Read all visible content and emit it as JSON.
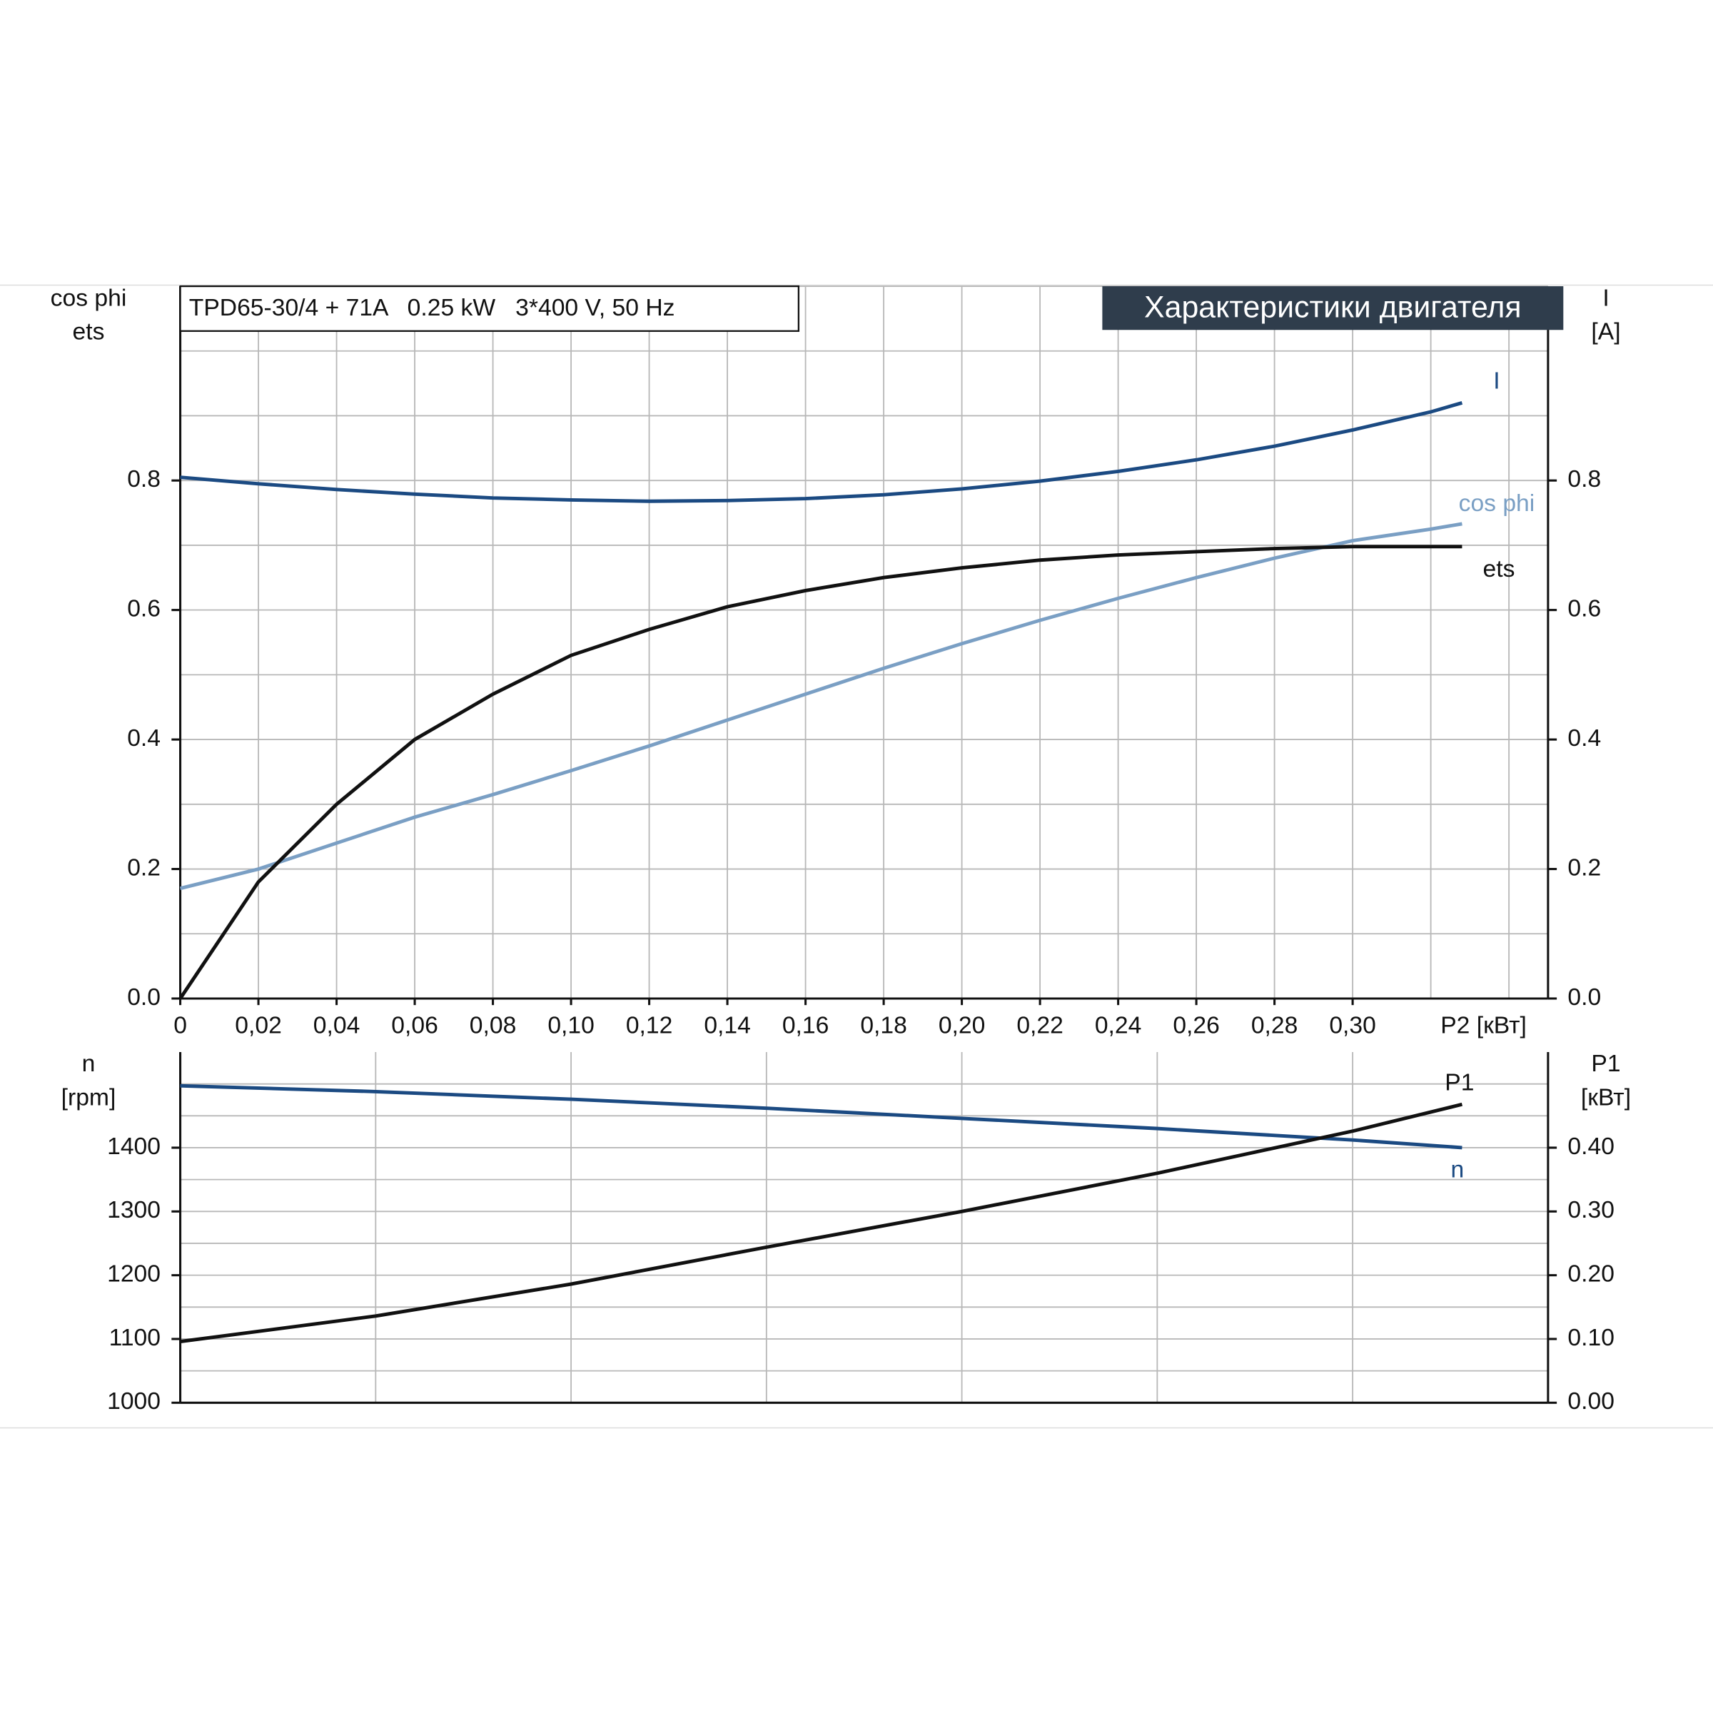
{
  "chart_data": [
    {
      "type": "line",
      "title": "Характеристики двигателя",
      "subtitle": "TPD65-30/4 + 71A   0.25 kW   3*400 V, 50 Hz",
      "xlabel": "P2 [кВт]",
      "ylabel": [
        "cos phi",
        "ets"
      ],
      "y2label": [
        "I",
        "[A]"
      ],
      "xlim": [
        0,
        0.35
      ],
      "xticks": [
        {
          "value": 0,
          "label": "0"
        },
        {
          "value": 0.02,
          "label": "0,02"
        },
        {
          "value": 0.04,
          "label": "0,04"
        },
        {
          "value": 0.06,
          "label": "0,06"
        },
        {
          "value": 0.08,
          "label": "0,08"
        },
        {
          "value": 0.1,
          "label": "0,10"
        },
        {
          "value": 0.12,
          "label": "0,12"
        },
        {
          "value": 0.14,
          "label": "0,14"
        },
        {
          "value": 0.16,
          "label": "0,16"
        },
        {
          "value": 0.18,
          "label": "0,18"
        },
        {
          "value": 0.2,
          "label": "0,20"
        },
        {
          "value": 0.22,
          "label": "0,22"
        },
        {
          "value": 0.24,
          "label": "0,24"
        },
        {
          "value": 0.26,
          "label": "0,26"
        },
        {
          "value": 0.28,
          "label": "0,28"
        },
        {
          "value": 0.3,
          "label": "0,30"
        }
      ],
      "xgrid": [
        0.02,
        0.04,
        0.06,
        0.08,
        0.1,
        0.12,
        0.14,
        0.16,
        0.18,
        0.2,
        0.22,
        0.24,
        0.26,
        0.28,
        0.3,
        0.32,
        0.34
      ],
      "ylim": [
        0,
        1.1
      ],
      "yticks": [
        {
          "value": 0,
          "label": "0.0"
        },
        0.2,
        0.4,
        0.6,
        0.8
      ],
      "y2lim": [
        0,
        1.1
      ],
      "y2ticks": [
        {
          "value": 0,
          "label": "0.0"
        },
        0.2,
        0.4,
        0.6,
        0.8
      ],
      "ygrid": [
        0.1,
        0.2,
        0.3,
        0.4,
        0.5,
        0.6,
        0.7,
        0.8,
        0.9,
        1.0,
        1.1
      ],
      "x": [
        0,
        0.02,
        0.04,
        0.06,
        0.08,
        0.1,
        0.12,
        0.14,
        0.16,
        0.18,
        0.2,
        0.22,
        0.24,
        0.26,
        0.28,
        0.3,
        0.32,
        0.328
      ],
      "series": [
        {
          "name": "I",
          "color": "#1b4a82",
          "axis": "y2",
          "values": [
            0.805,
            0.795,
            0.786,
            0.779,
            0.773,
            0.77,
            0.768,
            0.769,
            0.772,
            0.778,
            0.787,
            0.799,
            0.814,
            0.832,
            0.853,
            0.878,
            0.906,
            0.92
          ]
        },
        {
          "name": "cos phi",
          "color": "#7a9fc4",
          "values": [
            0.17,
            0.2,
            0.24,
            0.28,
            0.315,
            0.352,
            0.39,
            0.43,
            0.47,
            0.51,
            0.548,
            0.584,
            0.618,
            0.65,
            0.68,
            0.707,
            0.725,
            0.733
          ]
        },
        {
          "name": "ets",
          "color": "#111111",
          "values": [
            0,
            0.18,
            0.3,
            0.4,
            0.47,
            0.53,
            0.57,
            0.605,
            0.63,
            0.65,
            0.665,
            0.677,
            0.685,
            0.69,
            0.695,
            0.698,
            0.698,
            0.698
          ]
        }
      ]
    },
    {
      "type": "line",
      "ylabel": [
        "n",
        "[rpm]"
      ],
      "y2label": [
        "P1",
        "[кВт]"
      ],
      "xlim": [
        0,
        0.35
      ],
      "xgrid": [
        0.05,
        0.1,
        0.15,
        0.2,
        0.25,
        0.3
      ],
      "ylim": [
        1000,
        1550
      ],
      "yticks": [
        1000,
        1100,
        1200,
        1300,
        1400
      ],
      "y2lim": [
        0,
        0.55
      ],
      "y2ticks": [
        {
          "value": 0,
          "label": "0.00"
        },
        {
          "value": 0.1,
          "label": "0.10"
        },
        {
          "value": 0.2,
          "label": "0.20"
        },
        {
          "value": 0.3,
          "label": "0.30"
        },
        {
          "value": 0.4,
          "label": "0.40"
        }
      ],
      "ygrid": [
        1050,
        1100,
        1150,
        1200,
        1250,
        1300,
        1350,
        1400,
        1450,
        1500
      ],
      "x": [
        0,
        0.05,
        0.1,
        0.15,
        0.2,
        0.25,
        0.3,
        0.328
      ],
      "series": [
        {
          "name": "n",
          "color": "#1b4a82",
          "values": [
            1497,
            1488,
            1476,
            1462,
            1446,
            1430,
            1412,
            1400
          ]
        },
        {
          "name": "P1",
          "color": "#111111",
          "axis": "y2",
          "values": [
            0.096,
            0.136,
            0.186,
            0.244,
            0.3,
            0.36,
            0.426,
            0.468
          ]
        }
      ]
    }
  ]
}
